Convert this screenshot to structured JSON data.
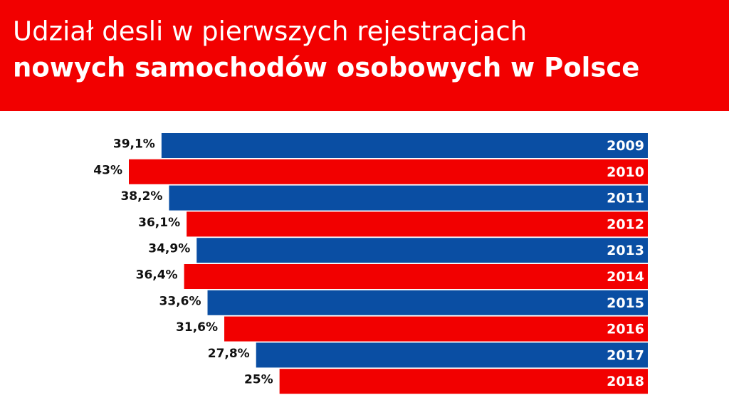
{
  "chart_data": {
    "type": "hbar",
    "title_lines": [
      "Udział desli w pierwszych rejestracjach",
      "nowych samochodów osobowych w Polsce"
    ],
    "categories": [
      "2009",
      "2010",
      "2011",
      "2012",
      "2013",
      "2014",
      "2015",
      "2016",
      "2017",
      "2018"
    ],
    "values": [
      39.1,
      43,
      38.2,
      36.1,
      34.9,
      36.4,
      33.6,
      31.6,
      27.8,
      25
    ],
    "value_labels": [
      "39,1%",
      "43%",
      "38,2%",
      "36,1%",
      "34,9%",
      "36,4%",
      "33,6%",
      "31,6%",
      "27,8%",
      "25%"
    ],
    "colors": [
      "#0a4ea3",
      "#f20000",
      "#0a4ea3",
      "#f20000",
      "#0a4ea3",
      "#f20000",
      "#0a4ea3",
      "#f20000",
      "#0a4ea3",
      "#f20000"
    ],
    "xlim": [
      -19,
      43
    ]
  }
}
